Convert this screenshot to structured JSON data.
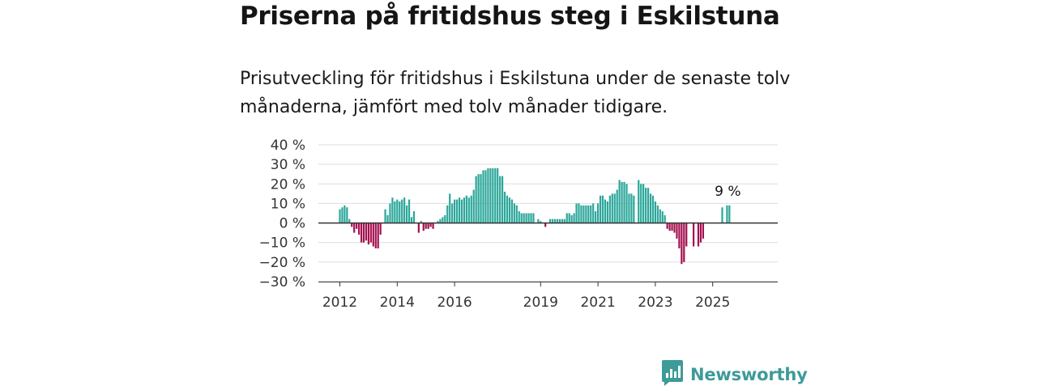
{
  "title": "Priserna på fritidshus steg i Eskilstuna",
  "subtitle": "Prisutveckling för fritidshus i Eskilstuna under de senaste tolv månaderna, jämfört med tolv månader tidigare.",
  "brand": {
    "name": "Newsworthy",
    "icon": "newsworthy-logo-icon",
    "color": "#3d9b98"
  },
  "colors": {
    "positive": "#2ba79a",
    "negative": "#a3114f",
    "axis": "#333333",
    "grid": "#dddddd"
  },
  "chart_data": {
    "type": "bar",
    "title": "",
    "xlabel": "",
    "ylabel": "",
    "ylim": [
      -30,
      40
    ],
    "y_ticks": [
      40,
      30,
      20,
      10,
      0,
      -10,
      -20,
      -30
    ],
    "y_tick_labels": [
      "40 %",
      "30 %",
      "20 %",
      "10 %",
      "0 %",
      "−10 %",
      "−20 %",
      "−30 %"
    ],
    "x_ticks": [
      "2012",
      "2014",
      "2016",
      "2019",
      "2021",
      "2023",
      "2025"
    ],
    "grid": true,
    "start_month": "2012-01",
    "annotation": {
      "text": "9 %",
      "value": 9
    },
    "values": [
      7,
      8,
      9,
      8,
      2,
      -2,
      -5,
      -3,
      -6,
      -10,
      -10,
      -9,
      -11,
      -10,
      -12,
      -13,
      -13,
      -6,
      null,
      7,
      4,
      10,
      13,
      11,
      12,
      11,
      12,
      13,
      9,
      12,
      3,
      6,
      null,
      -5,
      1,
      -4,
      -3,
      -3,
      -2,
      -3,
      null,
      1,
      2,
      3,
      4,
      9,
      15,
      10,
      12,
      12,
      13,
      12,
      13,
      14,
      13,
      14,
      17,
      24,
      25,
      25,
      27,
      27,
      28,
      28,
      28,
      28,
      28,
      24,
      24,
      16,
      14,
      13,
      12,
      10,
      9,
      6,
      5,
      5,
      5,
      5,
      5,
      5,
      null,
      2,
      1,
      null,
      -2,
      null,
      2,
      2,
      2,
      2,
      2,
      2,
      2,
      5,
      5,
      4,
      5,
      10,
      10,
      9,
      9,
      9,
      9,
      9,
      10,
      6,
      10,
      14,
      14,
      12,
      11,
      14,
      15,
      15,
      17,
      22,
      21,
      21,
      20,
      15,
      15,
      14,
      null,
      22,
      20,
      20,
      18,
      18,
      15,
      14,
      11,
      9,
      7,
      6,
      4,
      -3,
      -4,
      -4,
      -5,
      -8,
      -13,
      -21,
      -20,
      -12,
      null,
      null,
      -12,
      null,
      -12,
      -10,
      -8,
      null,
      null,
      null,
      null,
      null,
      null,
      null,
      8,
      null,
      9,
      9
    ]
  }
}
